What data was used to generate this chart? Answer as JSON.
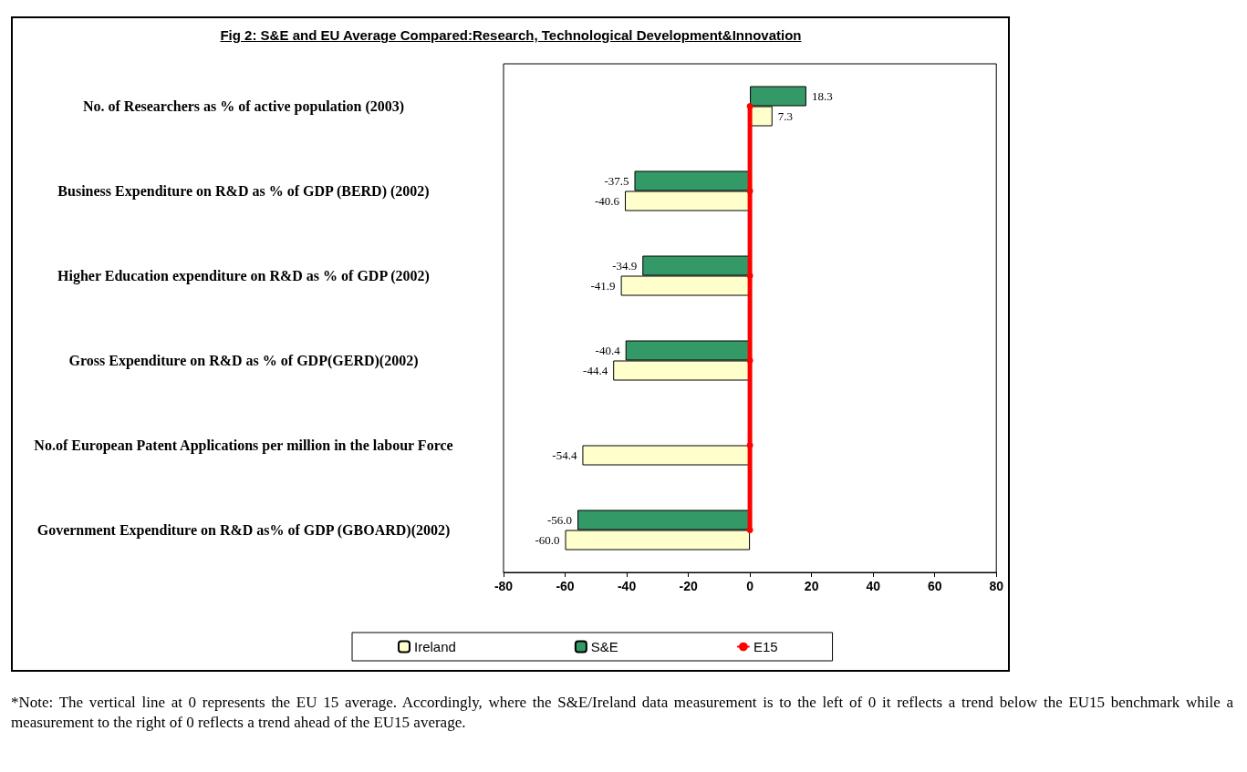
{
  "chart_data": {
    "type": "bar",
    "orientation": "horizontal",
    "title": "Fig 2: S&E and EU Average Compared:Research, Technological Development&Innovation",
    "categories": [
      "No. of Researchers as % of active population (2003)",
      "Business Expenditure on R&D as % of GDP (BERD) (2002)",
      "Higher Education expenditure on R&D as % of GDP (2002)",
      "Gross Expenditure on R&D as % of GDP(GERD)(2002)",
      "No.of European Patent Applications per million in the labour Force",
      "Government Expenditure on R&D as% of GDP (GBOARD)(2002)"
    ],
    "series": [
      {
        "name": "Ireland",
        "color": "#ffffcc",
        "values": [
          7.3,
          -40.6,
          -41.9,
          -44.4,
          -54.4,
          -60.0
        ],
        "value_labels": [
          "7.3",
          "-40.6",
          "-41.9",
          "-44.4",
          "-54.4",
          "-60.0"
        ]
      },
      {
        "name": "S&E",
        "color": "#339966",
        "values": [
          18.3,
          -37.5,
          -34.9,
          -40.4,
          null,
          -56.0
        ],
        "value_labels": [
          "18.3",
          "-37.5",
          "-34.9",
          "-40.4",
          null,
          "-56.0"
        ]
      },
      {
        "name": "E15",
        "type": "line",
        "color": "#ff0000",
        "marker": "circle",
        "values": [
          0,
          0,
          0,
          0,
          0,
          0
        ]
      }
    ],
    "xlim": [
      -80,
      80
    ],
    "xticks": [
      -80,
      -60,
      -40,
      -20,
      0,
      20,
      40,
      60,
      80
    ],
    "grid": false,
    "legend": "bottom",
    "annotations": [
      "*Note: The vertical line at 0 represents the EU 15 average.  Accordingly, where the S&E/Ireland data measurement is to the left of 0 it reflects a trend below the EU15 benchmark while a measurement to the right of 0 reflects a trend ahead of the EU15 average."
    ]
  }
}
